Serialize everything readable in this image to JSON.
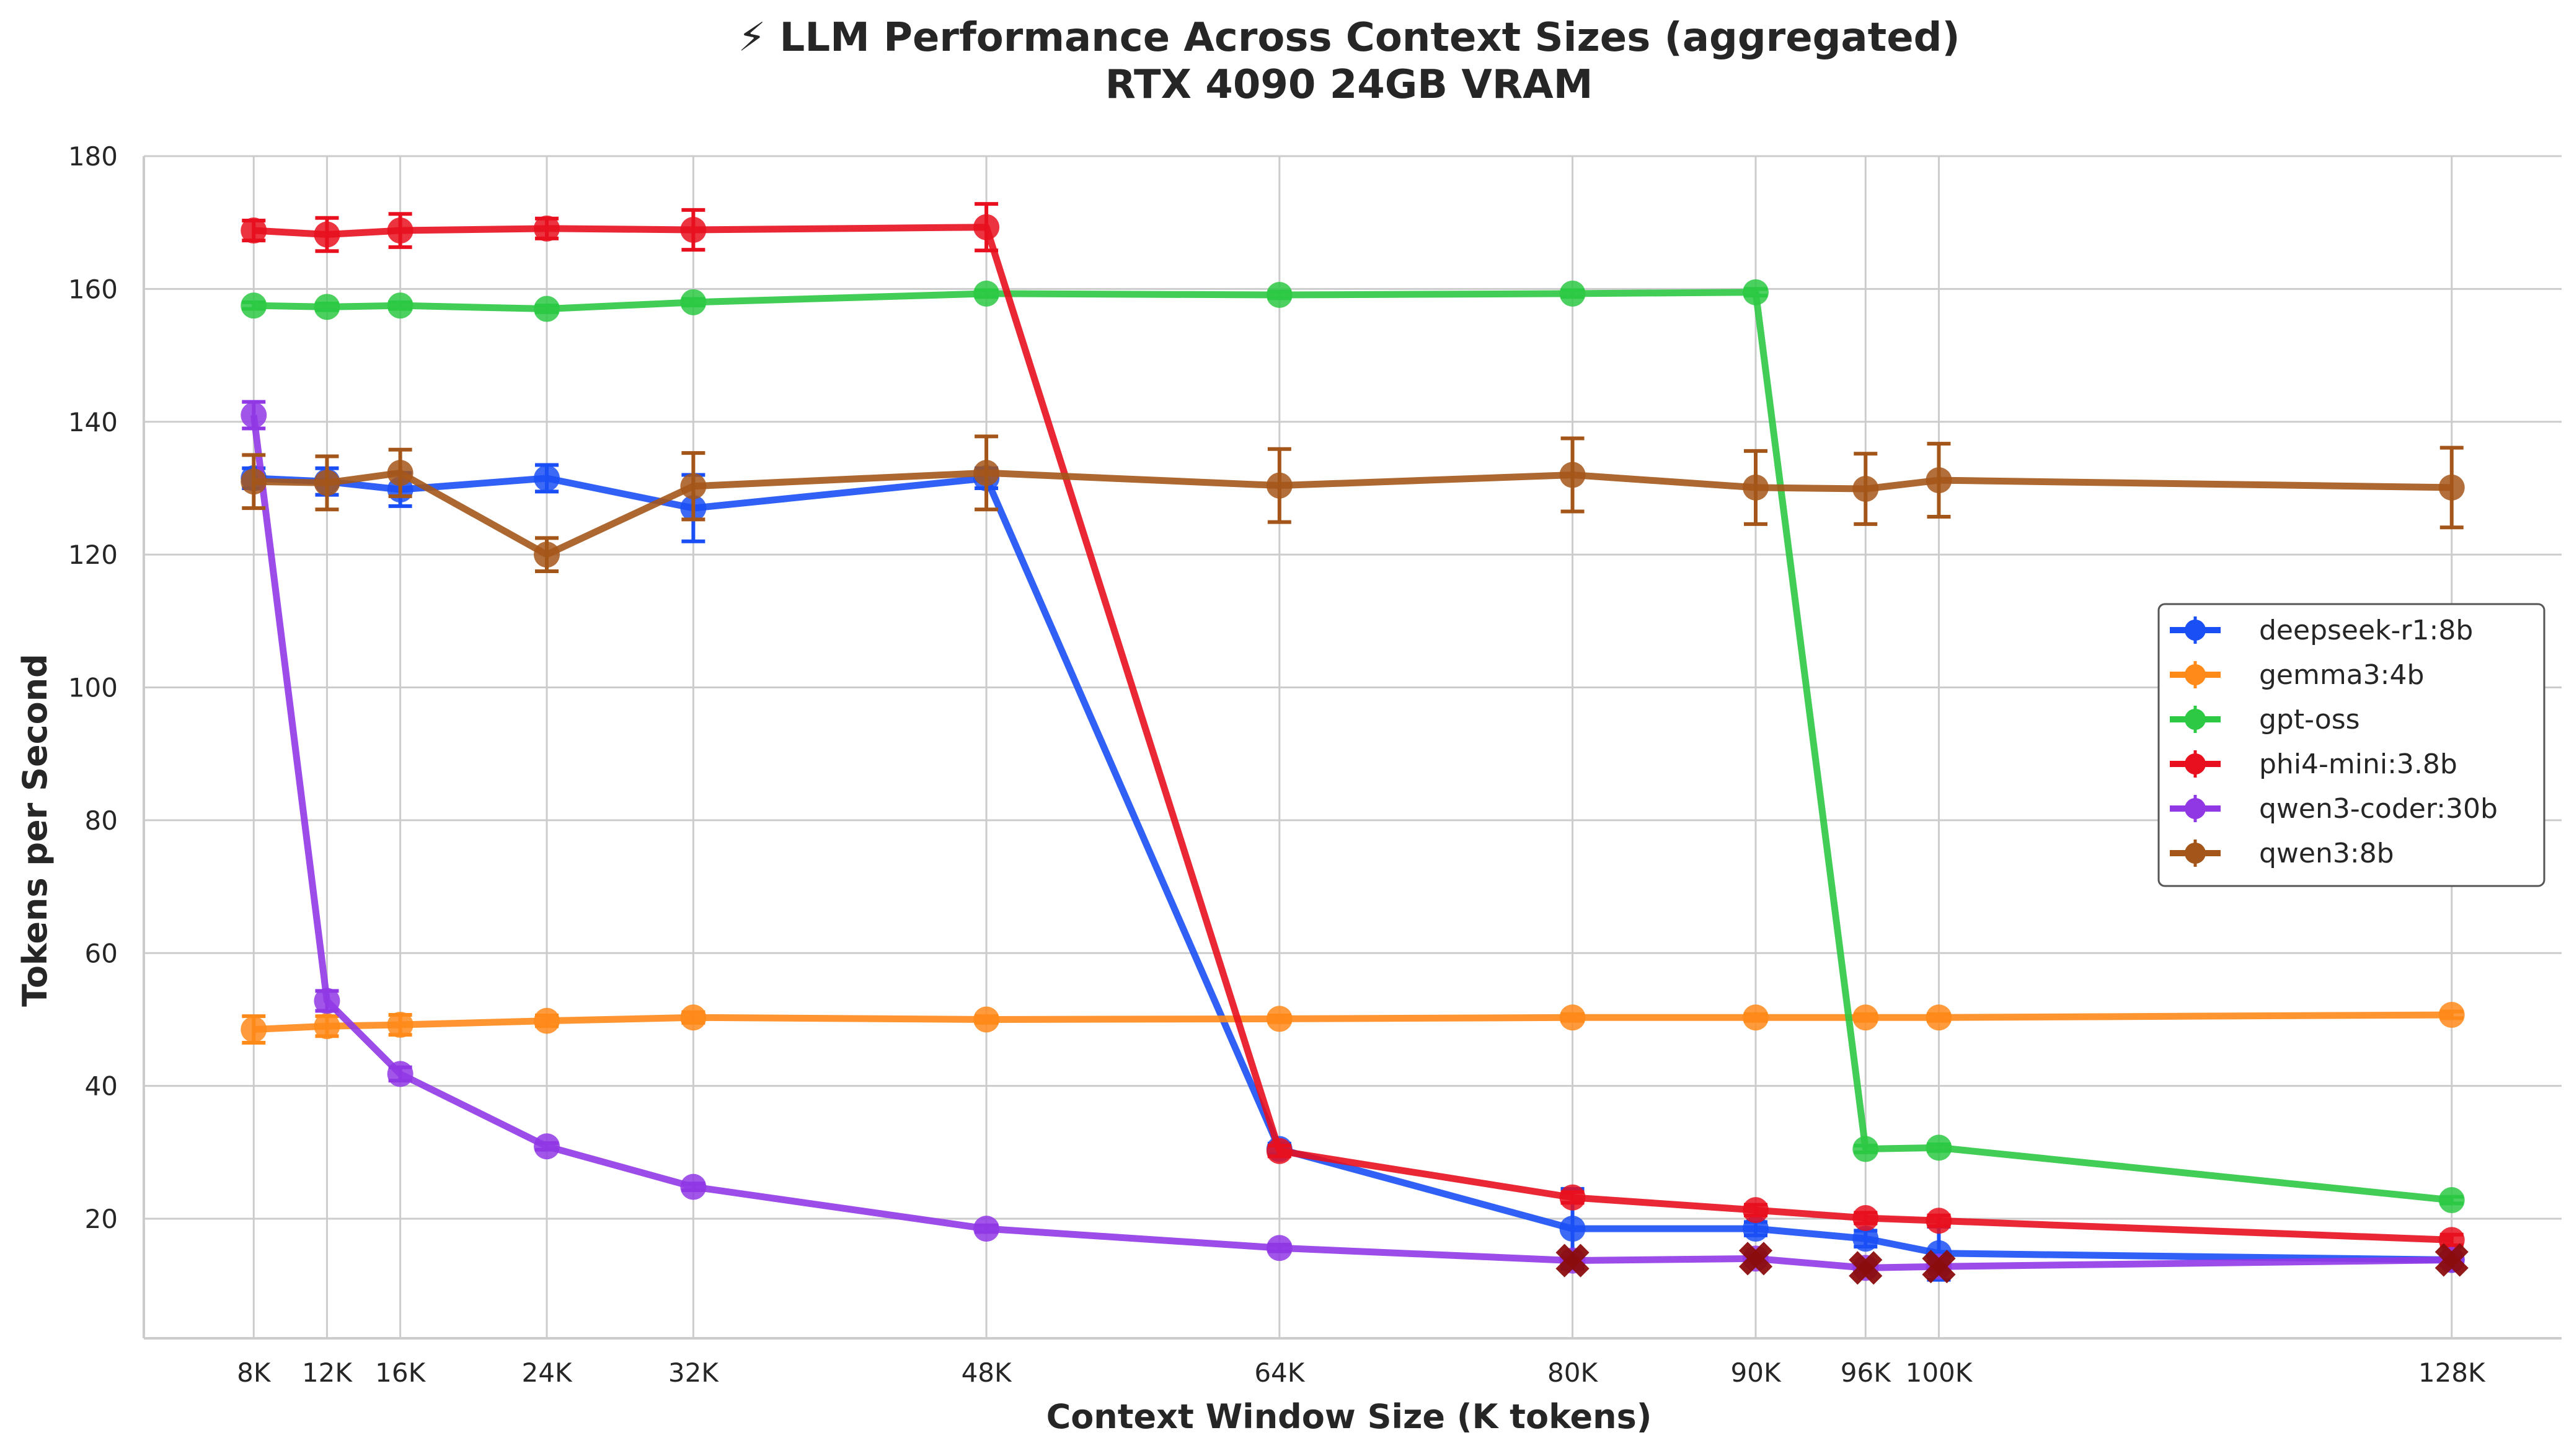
{
  "chart_data": {
    "type": "line",
    "title": "⚡ LLM Performance Across Context Sizes (aggregated)",
    "subtitle": "RTX 4090 24GB VRAM",
    "xlabel": "Context Window Size (K tokens)",
    "ylabel": "Tokens per Second",
    "x": [
      8,
      12,
      16,
      24,
      32,
      48,
      64,
      80,
      90,
      96,
      100,
      128
    ],
    "x_tick_labels": [
      "8K",
      "12K",
      "16K",
      "24K",
      "32K",
      "48K",
      "64K",
      "80K",
      "90K",
      "96K",
      "100K",
      "128K"
    ],
    "xlim": [
      2,
      134
    ],
    "ylim": [
      2,
      180
    ],
    "y_ticks": [
      20,
      40,
      60,
      80,
      100,
      120,
      140,
      160,
      180
    ],
    "grid": true,
    "legend_position": "center-right",
    "series": [
      {
        "name": "deepseek-r1:8b",
        "color": "#1a4ff5",
        "x": [
          8,
          12,
          16,
          24,
          32,
          48,
          64,
          80,
          90,
          96,
          100,
          128
        ],
        "values": [
          131.5,
          131.0,
          129.8,
          131.5,
          127.0,
          131.5,
          30.5,
          18.5,
          18.5,
          17.0,
          14.8,
          13.8
        ],
        "errors": [
          1.5,
          2.0,
          2.5,
          2.0,
          5.0,
          1.5,
          0.8,
          6.0,
          1.0,
          1.2,
          4.0,
          0.8
        ]
      },
      {
        "name": "gemma3:4b",
        "color": "#ff8a1a",
        "x": [
          8,
          12,
          16,
          24,
          32,
          48,
          64,
          80,
          90,
          96,
          100,
          128
        ],
        "values": [
          48.5,
          49.0,
          49.2,
          49.8,
          50.3,
          50.0,
          50.1,
          50.3,
          50.3,
          50.3,
          50.3,
          50.7
        ],
        "errors": [
          2.0,
          1.5,
          1.5,
          0.8,
          0.8,
          0.5,
          0.5,
          0.5,
          0.5,
          0.5,
          0.5,
          0.5
        ]
      },
      {
        "name": "gpt-oss",
        "color": "#2dc944",
        "x": [
          8,
          12,
          16,
          24,
          32,
          48,
          64,
          80,
          90,
          96,
          100,
          128
        ],
        "values": [
          157.5,
          157.3,
          157.5,
          157.0,
          158.0,
          159.3,
          159.1,
          159.3,
          159.5,
          30.5,
          30.7,
          22.8
        ],
        "errors": [
          0.5,
          0.5,
          0.5,
          0.5,
          0.5,
          0.5,
          0.5,
          0.5,
          0.5,
          0.5,
          0.5,
          0.5
        ]
      },
      {
        "name": "phi4-mini:3.8b",
        "color": "#e8101e",
        "x": [
          8,
          12,
          16,
          24,
          32,
          48,
          64,
          80,
          90,
          96,
          100,
          128
        ],
        "values": [
          168.8,
          168.2,
          168.8,
          169.1,
          168.9,
          169.3,
          30.2,
          23.2,
          21.3,
          20.1,
          19.7,
          16.8
        ],
        "errors": [
          1.5,
          2.5,
          2.5,
          1.5,
          3.0,
          3.5,
          0.8,
          0.8,
          0.8,
          0.8,
          0.8,
          0.8
        ]
      },
      {
        "name": "qwen3-coder:30b",
        "color": "#9138e5",
        "x": [
          8,
          12,
          16,
          24,
          32,
          48,
          64,
          80,
          90,
          96,
          100,
          128
        ],
        "values": [
          141.0,
          52.8,
          41.8,
          30.9,
          24.8,
          18.5,
          15.6,
          13.7,
          14.0,
          12.6,
          12.8,
          13.8
        ],
        "errors": [
          2.0,
          1.5,
          1.0,
          0.5,
          0.5,
          0.5,
          0.5,
          0.5,
          0.5,
          0.5,
          0.5,
          0.5
        ]
      },
      {
        "name": "qwen3:8b",
        "color": "#a4561a",
        "x": [
          8,
          12,
          16,
          24,
          32,
          48,
          64,
          80,
          90,
          96,
          100,
          128
        ],
        "values": [
          131.0,
          130.8,
          132.3,
          120.0,
          130.3,
          132.3,
          130.4,
          132.0,
          130.1,
          129.9,
          131.2,
          130.1
        ],
        "errors": [
          4.0,
          4.0,
          3.5,
          2.5,
          5.0,
          5.5,
          5.5,
          5.5,
          5.5,
          5.3,
          5.5,
          6.0
        ]
      }
    ],
    "failure_markers": {
      "color": "#8b0d0d",
      "points": [
        {
          "x": 80,
          "y": 13.7
        },
        {
          "x": 90,
          "y": 14.0
        },
        {
          "x": 96,
          "y": 12.6
        },
        {
          "x": 100,
          "y": 12.8
        },
        {
          "x": 128,
          "y": 13.8
        }
      ]
    }
  }
}
